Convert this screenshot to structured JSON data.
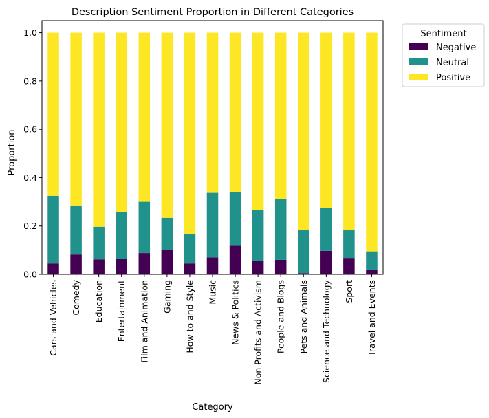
{
  "chart_data": {
    "type": "bar",
    "stacked": true,
    "title": "Description Sentiment Proportion in Different Categories",
    "xlabel": "Category",
    "ylabel": "Proportion",
    "ylim": [
      0,
      1.05
    ],
    "yticks": [
      "0.0",
      "0.2",
      "0.4",
      "0.6",
      "0.8",
      "1.0"
    ],
    "grid": false,
    "legend": {
      "title": "Sentiment",
      "placement": "outside-top-right"
    },
    "categories": [
      "Cars and Vehicles",
      "Comedy",
      "Education",
      "Entertainment",
      "Film and Animation",
      "Gaming",
      "How to and Style",
      "Music",
      "News & Politics",
      "Non Profits and Activism",
      "People and Blogs",
      "Pets and Animals",
      "Science and Technology",
      "Sport",
      "Travel and Events"
    ],
    "series": [
      {
        "name": "Negative",
        "color": "#440154",
        "values": [
          0.045,
          0.082,
          0.062,
          0.063,
          0.088,
          0.102,
          0.045,
          0.07,
          0.118,
          0.055,
          0.06,
          0.005,
          0.097,
          0.068,
          0.02
        ]
      },
      {
        "name": "Neutral",
        "color": "#21918c",
        "values": [
          0.28,
          0.203,
          0.135,
          0.194,
          0.212,
          0.132,
          0.12,
          0.267,
          0.221,
          0.21,
          0.251,
          0.178,
          0.177,
          0.115,
          0.075
        ]
      },
      {
        "name": "Positive",
        "color": "#fde725",
        "values": [
          0.675,
          0.715,
          0.803,
          0.743,
          0.7,
          0.766,
          0.835,
          0.663,
          0.661,
          0.735,
          0.689,
          0.817,
          0.726,
          0.817,
          0.905
        ]
      }
    ]
  }
}
